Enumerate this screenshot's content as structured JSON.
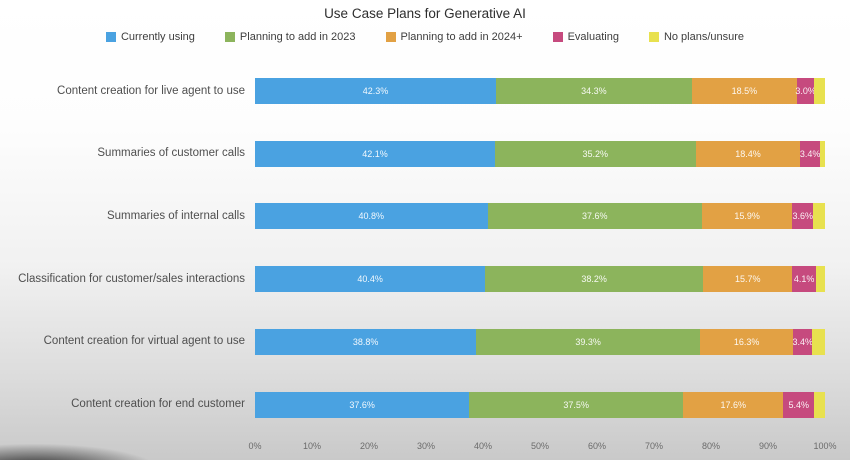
{
  "title": "Use Case Plans for Generative AI",
  "chart_data": {
    "type": "bar",
    "stacked": true,
    "orientation": "horizontal",
    "title": "Use Case Plans for Generative AI",
    "categories": [
      "Content creation for live agent to use",
      "Summaries of customer calls",
      "Summaries of internal calls",
      "Classification for customer/sales interactions",
      "Content creation for virtual agent to use",
      "Content creation for end customer"
    ],
    "series": [
      {
        "name": "Currently using",
        "color": "#4aa2e1",
        "show_value_labels": true,
        "values": [
          42.3,
          42.1,
          40.8,
          40.4,
          38.8,
          37.6
        ]
      },
      {
        "name": "Planning to add in 2023",
        "color": "#8cb45c",
        "show_value_labels": true,
        "values": [
          34.3,
          35.2,
          37.6,
          38.2,
          39.3,
          37.5
        ]
      },
      {
        "name": "Planning to add in 2024+",
        "color": "#e2a144",
        "show_value_labels": true,
        "values": [
          18.5,
          18.4,
          15.9,
          15.7,
          16.3,
          17.6
        ]
      },
      {
        "name": "Evaluating",
        "color": "#c64a7e",
        "show_value_labels": true,
        "values": [
          3.0,
          3.4,
          3.6,
          4.1,
          3.4,
          5.4
        ]
      },
      {
        "name": "No plans/unsure",
        "color": "#e8e14f",
        "show_value_labels": false,
        "values": [
          1.9,
          0.9,
          2.1,
          1.6,
          2.2,
          1.9
        ]
      }
    ],
    "x_axis_ticks": [
      "0%",
      "10%",
      "20%",
      "30%",
      "40%",
      "50%",
      "60%",
      "70%",
      "80%",
      "90%",
      "100%"
    ],
    "xlim": [
      0,
      100
    ],
    "value_label_suffix": "%",
    "legend_position": "top",
    "grid": false
  },
  "colors": {
    "background_top": "#ffffff",
    "background_bottom": "#c9c9c9",
    "title_text": "#2e2e2e",
    "category_text": "#4f4f4f",
    "axis_text": "#6b6b6b"
  }
}
